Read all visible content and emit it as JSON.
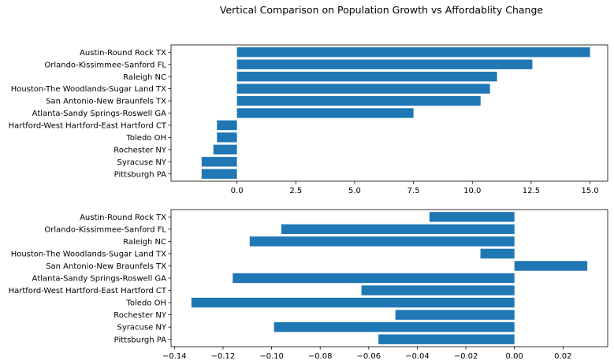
{
  "chart_data": {
    "title": "Vertical Comparison on Population Growth vs Affordablity Change",
    "type": "bar",
    "orientation": "horizontal",
    "grid": false,
    "categories": [
      "Austin-Round Rock TX",
      "Orlando-Kissimmee-Sanford FL",
      "Raleigh NC",
      "Houston-The Woodlands-Sugar Land TX",
      "San Antonio-New Braunfels TX",
      "Atlanta-Sandy Springs-Roswell GA",
      "Hartford-West Hartford-East Hartford CT",
      "Toledo OH",
      "Rochester NY",
      "Syracuse NY",
      "Pittsburgh PA"
    ],
    "bar_color": "#1f77b4",
    "panels": [
      {
        "values": [
          15.0,
          12.55,
          11.05,
          10.75,
          10.35,
          7.5,
          -0.85,
          -0.85,
          -1.0,
          -1.5,
          -1.5
        ],
        "xlim": [
          -2.8,
          15.75
        ],
        "xticks": [
          0.0,
          2.5,
          5.0,
          7.5,
          10.0,
          12.5,
          15.0
        ],
        "xtick_labels": [
          "0.0",
          "2.5",
          "5.0",
          "7.5",
          "10.0",
          "12.5",
          "15.0"
        ]
      },
      {
        "values": [
          -0.035,
          -0.096,
          -0.109,
          -0.014,
          0.03,
          -0.116,
          -0.063,
          -0.133,
          -0.049,
          -0.099,
          -0.056
        ],
        "xlim": [
          -0.1414,
          0.0384
        ],
        "xticks": [
          -0.14,
          -0.12,
          -0.1,
          -0.08,
          -0.06,
          -0.04,
          -0.02,
          0.0,
          0.02
        ],
        "xtick_labels": [
          "−0.14",
          "−0.12",
          "−0.10",
          "−0.08",
          "−0.06",
          "−0.04",
          "−0.02",
          "0.00",
          "0.02"
        ]
      }
    ]
  }
}
